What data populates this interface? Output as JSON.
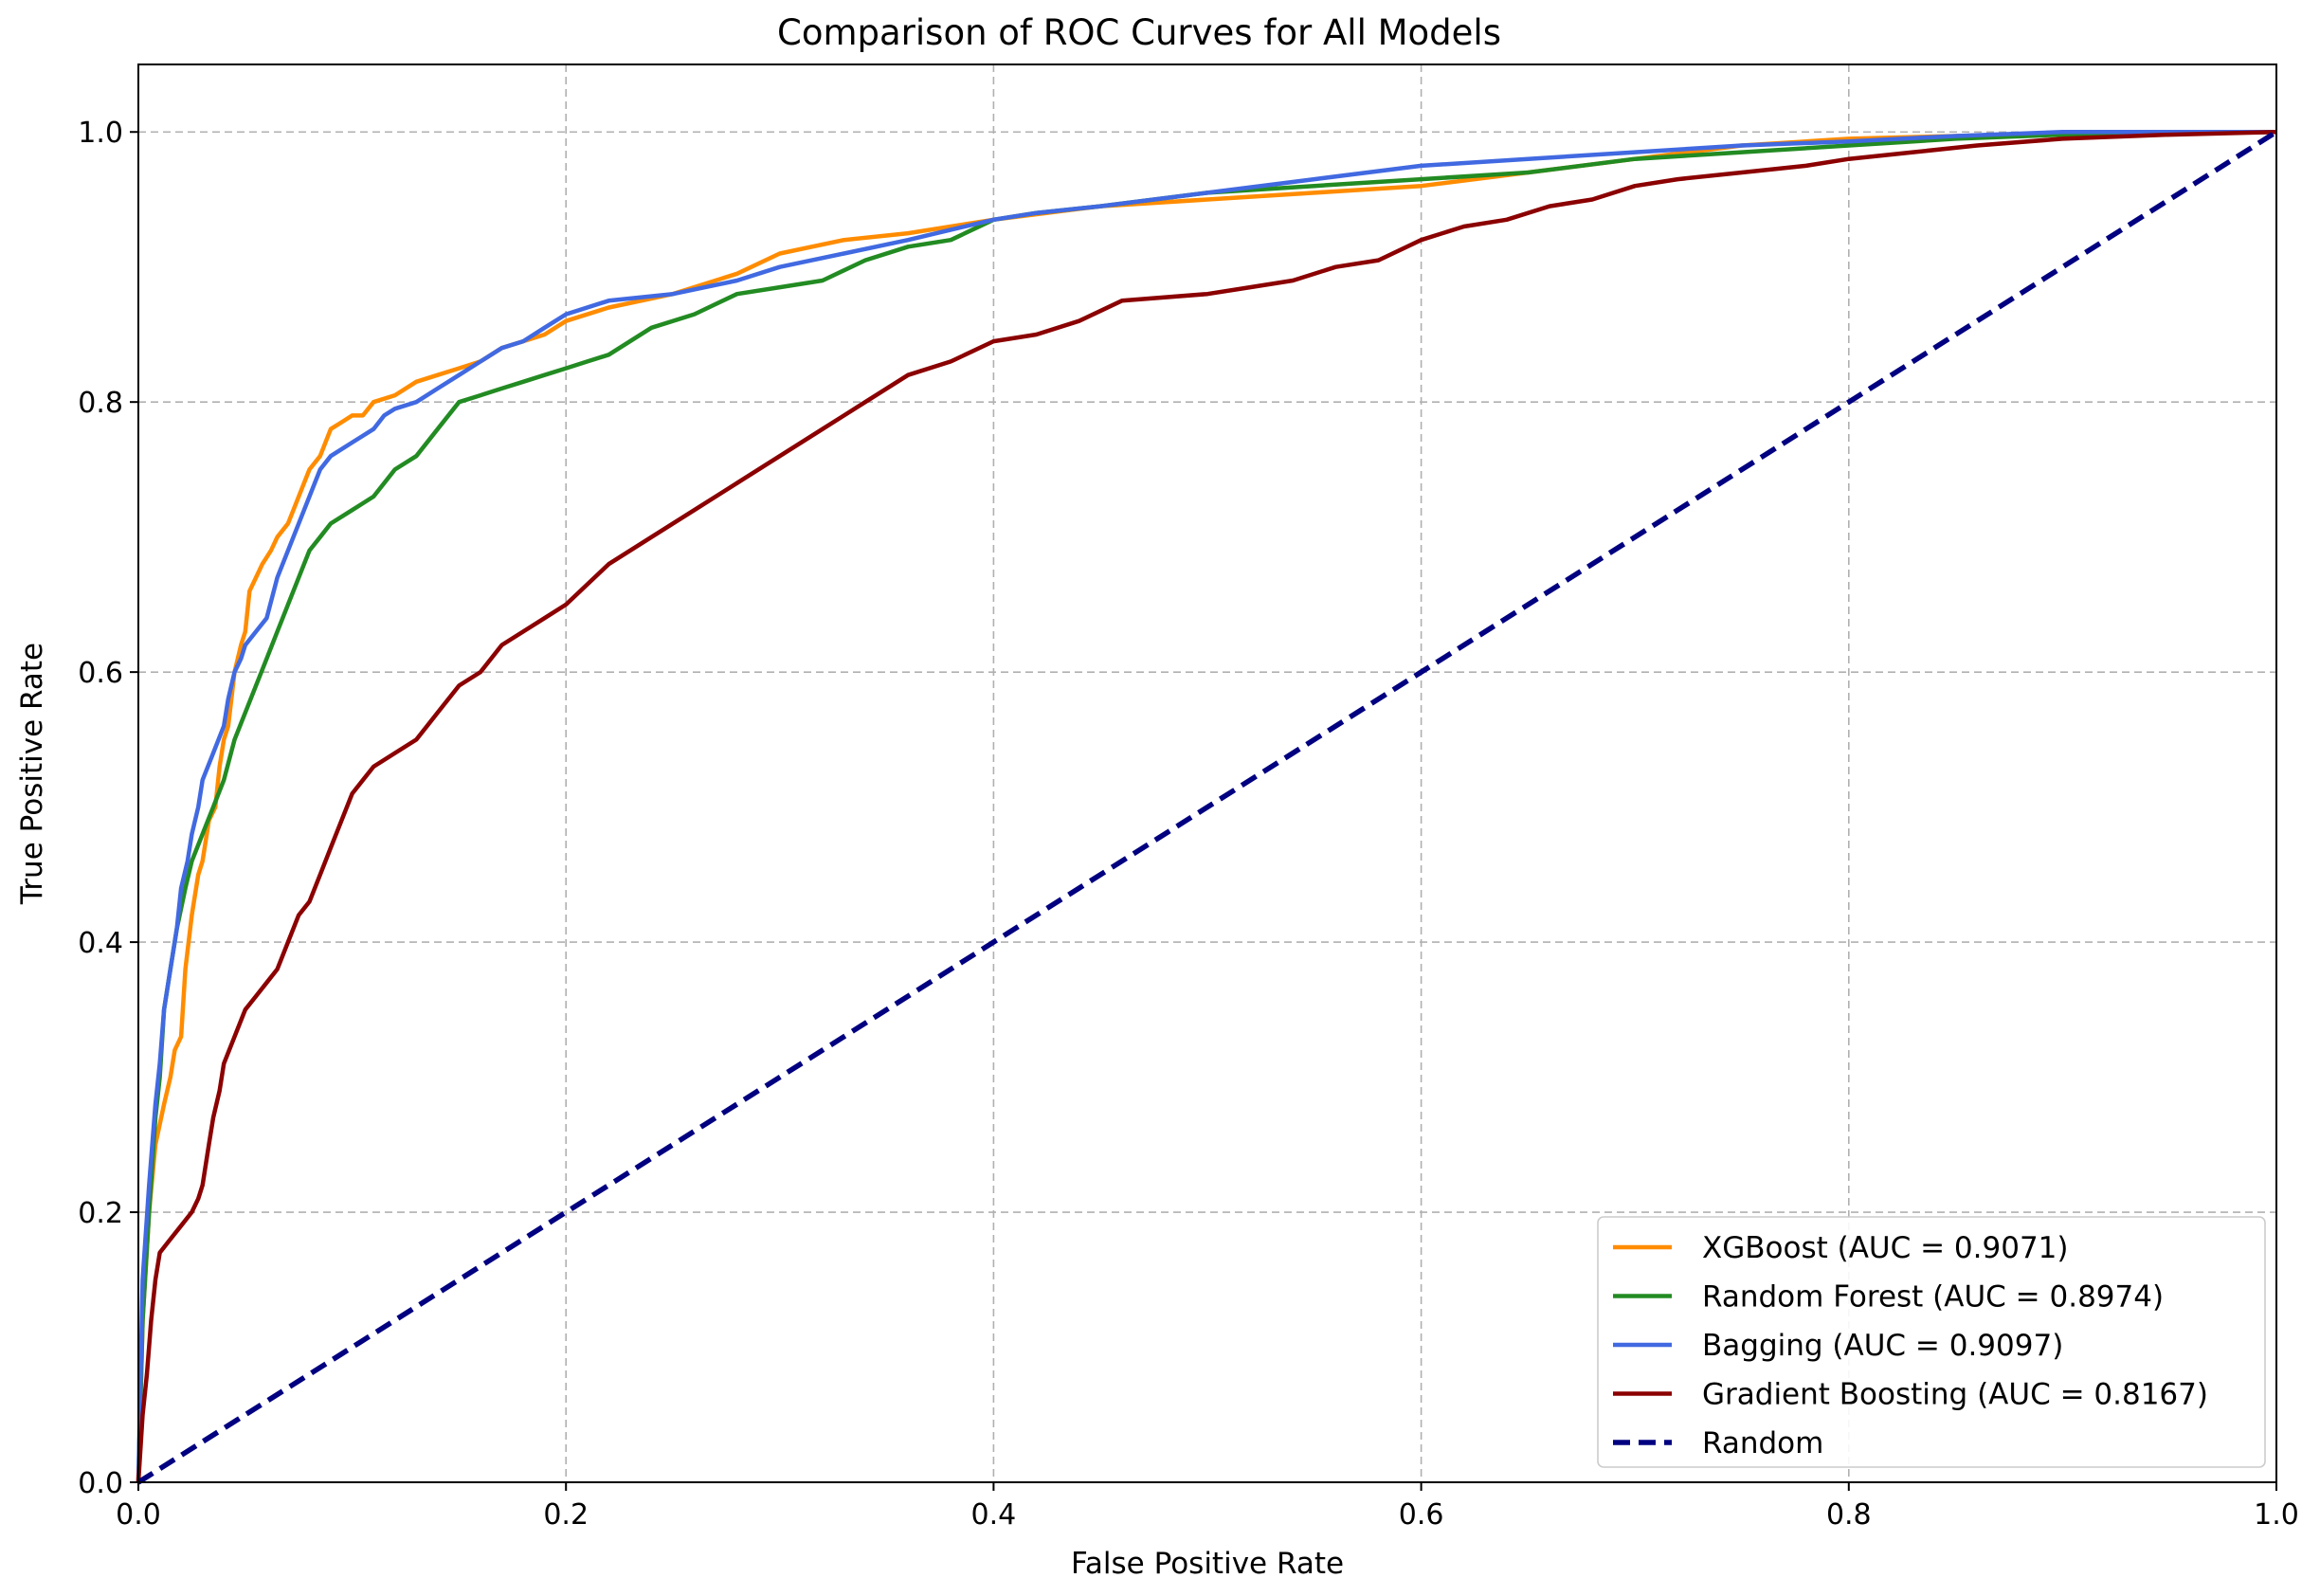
{
  "chart_data": {
    "type": "line",
    "title": "Comparison of ROC Curves for All Models",
    "xlabel": "False Positive Rate",
    "ylabel": "True Positive Rate",
    "xlim": [
      0.0,
      1.0
    ],
    "ylim": [
      0.0,
      1.05
    ],
    "xticks": [
      "0.0",
      "0.2",
      "0.4",
      "0.6",
      "0.8",
      "1.0"
    ],
    "yticks": [
      "0.0",
      "0.2",
      "0.4",
      "0.6",
      "0.8",
      "1.0"
    ],
    "xtick_values": [
      0.0,
      0.2,
      0.4,
      0.6,
      0.8,
      1.0
    ],
    "ytick_values": [
      0.0,
      0.2,
      0.4,
      0.6,
      0.8,
      1.0
    ],
    "grid": true,
    "legend_position": "lower-right",
    "series": [
      {
        "name": "XGBoost (AUC = 0.9071)",
        "color": "#ff8c00",
        "style": "solid",
        "points": [
          [
            0,
            0
          ],
          [
            0.002,
            0.12
          ],
          [
            0.005,
            0.2
          ],
          [
            0.008,
            0.25
          ],
          [
            0.012,
            0.28
          ],
          [
            0.015,
            0.3
          ],
          [
            0.017,
            0.32
          ],
          [
            0.02,
            0.33
          ],
          [
            0.022,
            0.38
          ],
          [
            0.025,
            0.42
          ],
          [
            0.028,
            0.45
          ],
          [
            0.03,
            0.46
          ],
          [
            0.033,
            0.49
          ],
          [
            0.036,
            0.5
          ],
          [
            0.038,
            0.53
          ],
          [
            0.04,
            0.55
          ],
          [
            0.042,
            0.56
          ],
          [
            0.045,
            0.6
          ],
          [
            0.048,
            0.62
          ],
          [
            0.05,
            0.63
          ],
          [
            0.052,
            0.66
          ],
          [
            0.055,
            0.67
          ],
          [
            0.058,
            0.68
          ],
          [
            0.062,
            0.69
          ],
          [
            0.065,
            0.7
          ],
          [
            0.07,
            0.71
          ],
          [
            0.075,
            0.73
          ],
          [
            0.08,
            0.75
          ],
          [
            0.085,
            0.76
          ],
          [
            0.09,
            0.78
          ],
          [
            0.095,
            0.785
          ],
          [
            0.1,
            0.79
          ],
          [
            0.105,
            0.79
          ],
          [
            0.11,
            0.8
          ],
          [
            0.12,
            0.805
          ],
          [
            0.13,
            0.815
          ],
          [
            0.14,
            0.82
          ],
          [
            0.15,
            0.825
          ],
          [
            0.16,
            0.83
          ],
          [
            0.17,
            0.84
          ],
          [
            0.18,
            0.845
          ],
          [
            0.19,
            0.85
          ],
          [
            0.2,
            0.86
          ],
          [
            0.22,
            0.87
          ],
          [
            0.25,
            0.88
          ],
          [
            0.28,
            0.895
          ],
          [
            0.3,
            0.91
          ],
          [
            0.33,
            0.92
          ],
          [
            0.36,
            0.925
          ],
          [
            0.4,
            0.935
          ],
          [
            0.45,
            0.945
          ],
          [
            0.5,
            0.95
          ],
          [
            0.55,
            0.955
          ],
          [
            0.6,
            0.96
          ],
          [
            0.65,
            0.97
          ],
          [
            0.7,
            0.98
          ],
          [
            0.75,
            0.99
          ],
          [
            0.8,
            0.995
          ],
          [
            0.85,
            0.997
          ],
          [
            0.9,
            0.999
          ],
          [
            1,
            1
          ]
        ]
      },
      {
        "name": "Random Forest (AUC = 0.8974)",
        "color": "#228b22",
        "style": "solid",
        "points": [
          [
            0,
            0
          ],
          [
            0.002,
            0.12
          ],
          [
            0.005,
            0.2
          ],
          [
            0.008,
            0.27
          ],
          [
            0.01,
            0.3
          ],
          [
            0.012,
            0.35
          ],
          [
            0.015,
            0.38
          ],
          [
            0.018,
            0.41
          ],
          [
            0.022,
            0.44
          ],
          [
            0.025,
            0.46
          ],
          [
            0.03,
            0.48
          ],
          [
            0.035,
            0.5
          ],
          [
            0.04,
            0.52
          ],
          [
            0.045,
            0.55
          ],
          [
            0.05,
            0.57
          ],
          [
            0.055,
            0.59
          ],
          [
            0.06,
            0.61
          ],
          [
            0.065,
            0.63
          ],
          [
            0.07,
            0.65
          ],
          [
            0.075,
            0.67
          ],
          [
            0.08,
            0.69
          ],
          [
            0.085,
            0.7
          ],
          [
            0.09,
            0.71
          ],
          [
            0.1,
            0.72
          ],
          [
            0.11,
            0.73
          ],
          [
            0.12,
            0.75
          ],
          [
            0.13,
            0.76
          ],
          [
            0.14,
            0.78
          ],
          [
            0.15,
            0.8
          ],
          [
            0.16,
            0.805
          ],
          [
            0.17,
            0.81
          ],
          [
            0.18,
            0.815
          ],
          [
            0.19,
            0.82
          ],
          [
            0.2,
            0.825
          ],
          [
            0.21,
            0.83
          ],
          [
            0.22,
            0.835
          ],
          [
            0.24,
            0.855
          ],
          [
            0.26,
            0.865
          ],
          [
            0.28,
            0.88
          ],
          [
            0.3,
            0.885
          ],
          [
            0.32,
            0.89
          ],
          [
            0.34,
            0.905
          ],
          [
            0.36,
            0.915
          ],
          [
            0.38,
            0.92
          ],
          [
            0.4,
            0.935
          ],
          [
            0.42,
            0.94
          ],
          [
            0.45,
            0.945
          ],
          [
            0.5,
            0.955
          ],
          [
            0.55,
            0.96
          ],
          [
            0.6,
            0.965
          ],
          [
            0.65,
            0.97
          ],
          [
            0.7,
            0.98
          ],
          [
            0.75,
            0.985
          ],
          [
            0.8,
            0.99
          ],
          [
            0.85,
            0.995
          ],
          [
            0.9,
            0.998
          ],
          [
            1,
            1
          ]
        ]
      },
      {
        "name": "Bagging (AUC = 0.9097)",
        "color": "#4169e1",
        "style": "solid",
        "points": [
          [
            0,
            0
          ],
          [
            0.002,
            0.15
          ],
          [
            0.005,
            0.22
          ],
          [
            0.008,
            0.28
          ],
          [
            0.01,
            0.31
          ],
          [
            0.012,
            0.35
          ],
          [
            0.015,
            0.38
          ],
          [
            0.018,
            0.41
          ],
          [
            0.02,
            0.44
          ],
          [
            0.023,
            0.46
          ],
          [
            0.025,
            0.48
          ],
          [
            0.028,
            0.5
          ],
          [
            0.03,
            0.52
          ],
          [
            0.035,
            0.54
          ],
          [
            0.04,
            0.56
          ],
          [
            0.042,
            0.58
          ],
          [
            0.045,
            0.6
          ],
          [
            0.048,
            0.61
          ],
          [
            0.05,
            0.62
          ],
          [
            0.055,
            0.63
          ],
          [
            0.06,
            0.64
          ],
          [
            0.065,
            0.67
          ],
          [
            0.07,
            0.69
          ],
          [
            0.075,
            0.71
          ],
          [
            0.08,
            0.73
          ],
          [
            0.085,
            0.75
          ],
          [
            0.09,
            0.76
          ],
          [
            0.1,
            0.77
          ],
          [
            0.11,
            0.78
          ],
          [
            0.115,
            0.79
          ],
          [
            0.12,
            0.795
          ],
          [
            0.13,
            0.8
          ],
          [
            0.14,
            0.81
          ],
          [
            0.15,
            0.82
          ],
          [
            0.16,
            0.83
          ],
          [
            0.17,
            0.84
          ],
          [
            0.18,
            0.845
          ],
          [
            0.19,
            0.855
          ],
          [
            0.2,
            0.865
          ],
          [
            0.22,
            0.875
          ],
          [
            0.25,
            0.88
          ],
          [
            0.28,
            0.89
          ],
          [
            0.3,
            0.9
          ],
          [
            0.33,
            0.91
          ],
          [
            0.36,
            0.92
          ],
          [
            0.4,
            0.935
          ],
          [
            0.42,
            0.94
          ],
          [
            0.45,
            0.945
          ],
          [
            0.5,
            0.955
          ],
          [
            0.55,
            0.965
          ],
          [
            0.6,
            0.975
          ],
          [
            0.65,
            0.98
          ],
          [
            0.7,
            0.985
          ],
          [
            0.75,
            0.99
          ],
          [
            0.8,
            0.993
          ],
          [
            0.85,
            0.997
          ],
          [
            0.9,
            1
          ],
          [
            1,
            1
          ]
        ]
      },
      {
        "name": "Gradient Boosting (AUC = 0.8167)",
        "color": "#8b0000",
        "style": "solid",
        "points": [
          [
            0,
            0
          ],
          [
            0.002,
            0.05
          ],
          [
            0.004,
            0.08
          ],
          [
            0.006,
            0.12
          ],
          [
            0.008,
            0.15
          ],
          [
            0.01,
            0.17
          ],
          [
            0.015,
            0.18
          ],
          [
            0.02,
            0.19
          ],
          [
            0.025,
            0.2
          ],
          [
            0.028,
            0.21
          ],
          [
            0.03,
            0.22
          ],
          [
            0.033,
            0.25
          ],
          [
            0.035,
            0.27
          ],
          [
            0.038,
            0.29
          ],
          [
            0.04,
            0.31
          ],
          [
            0.045,
            0.33
          ],
          [
            0.05,
            0.35
          ],
          [
            0.055,
            0.36
          ],
          [
            0.06,
            0.37
          ],
          [
            0.065,
            0.38
          ],
          [
            0.07,
            0.4
          ],
          [
            0.075,
            0.42
          ],
          [
            0.08,
            0.43
          ],
          [
            0.085,
            0.45
          ],
          [
            0.09,
            0.47
          ],
          [
            0.095,
            0.49
          ],
          [
            0.1,
            0.51
          ],
          [
            0.11,
            0.53
          ],
          [
            0.12,
            0.54
          ],
          [
            0.13,
            0.55
          ],
          [
            0.14,
            0.57
          ],
          [
            0.15,
            0.59
          ],
          [
            0.16,
            0.6
          ],
          [
            0.17,
            0.62
          ],
          [
            0.18,
            0.63
          ],
          [
            0.19,
            0.64
          ],
          [
            0.2,
            0.65
          ],
          [
            0.22,
            0.68
          ],
          [
            0.24,
            0.7
          ],
          [
            0.26,
            0.72
          ],
          [
            0.28,
            0.74
          ],
          [
            0.3,
            0.76
          ],
          [
            0.32,
            0.78
          ],
          [
            0.34,
            0.8
          ],
          [
            0.36,
            0.82
          ],
          [
            0.38,
            0.83
          ],
          [
            0.4,
            0.845
          ],
          [
            0.42,
            0.85
          ],
          [
            0.44,
            0.86
          ],
          [
            0.46,
            0.875
          ],
          [
            0.5,
            0.88
          ],
          [
            0.52,
            0.885
          ],
          [
            0.54,
            0.89
          ],
          [
            0.56,
            0.9
          ],
          [
            0.58,
            0.905
          ],
          [
            0.6,
            0.92
          ],
          [
            0.62,
            0.93
          ],
          [
            0.64,
            0.935
          ],
          [
            0.66,
            0.945
          ],
          [
            0.68,
            0.95
          ],
          [
            0.7,
            0.96
          ],
          [
            0.72,
            0.965
          ],
          [
            0.75,
            0.97
          ],
          [
            0.78,
            0.975
          ],
          [
            0.8,
            0.98
          ],
          [
            0.83,
            0.985
          ],
          [
            0.86,
            0.99
          ],
          [
            0.9,
            0.995
          ],
          [
            0.95,
            0.998
          ],
          [
            1,
            1
          ]
        ]
      },
      {
        "name": "Random",
        "color": "#000080",
        "style": "dashed",
        "points": [
          [
            0,
            0
          ],
          [
            1,
            1
          ]
        ]
      }
    ]
  }
}
